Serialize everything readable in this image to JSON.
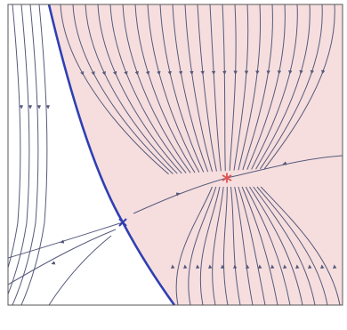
{
  "figure": {
    "kind": "phase-portrait",
    "colors": {
      "background": "#ffffff",
      "basin_fill": "#f6dede",
      "streamline": "#565a7c",
      "separatrix": "#2f3fb4",
      "frame": "#555555",
      "stable_marker": "#e05252",
      "saddle_marker": "#2f3fb4"
    },
    "markers": [
      {
        "name": "stable-equilibrium",
        "symbol": "star",
        "color": "#e05252"
      },
      {
        "name": "saddle-point",
        "symbol": "x",
        "color": "#2f3fb4"
      }
    ],
    "regions": [
      {
        "name": "basin-of-attraction",
        "color": "#f6dede"
      }
    ]
  }
}
